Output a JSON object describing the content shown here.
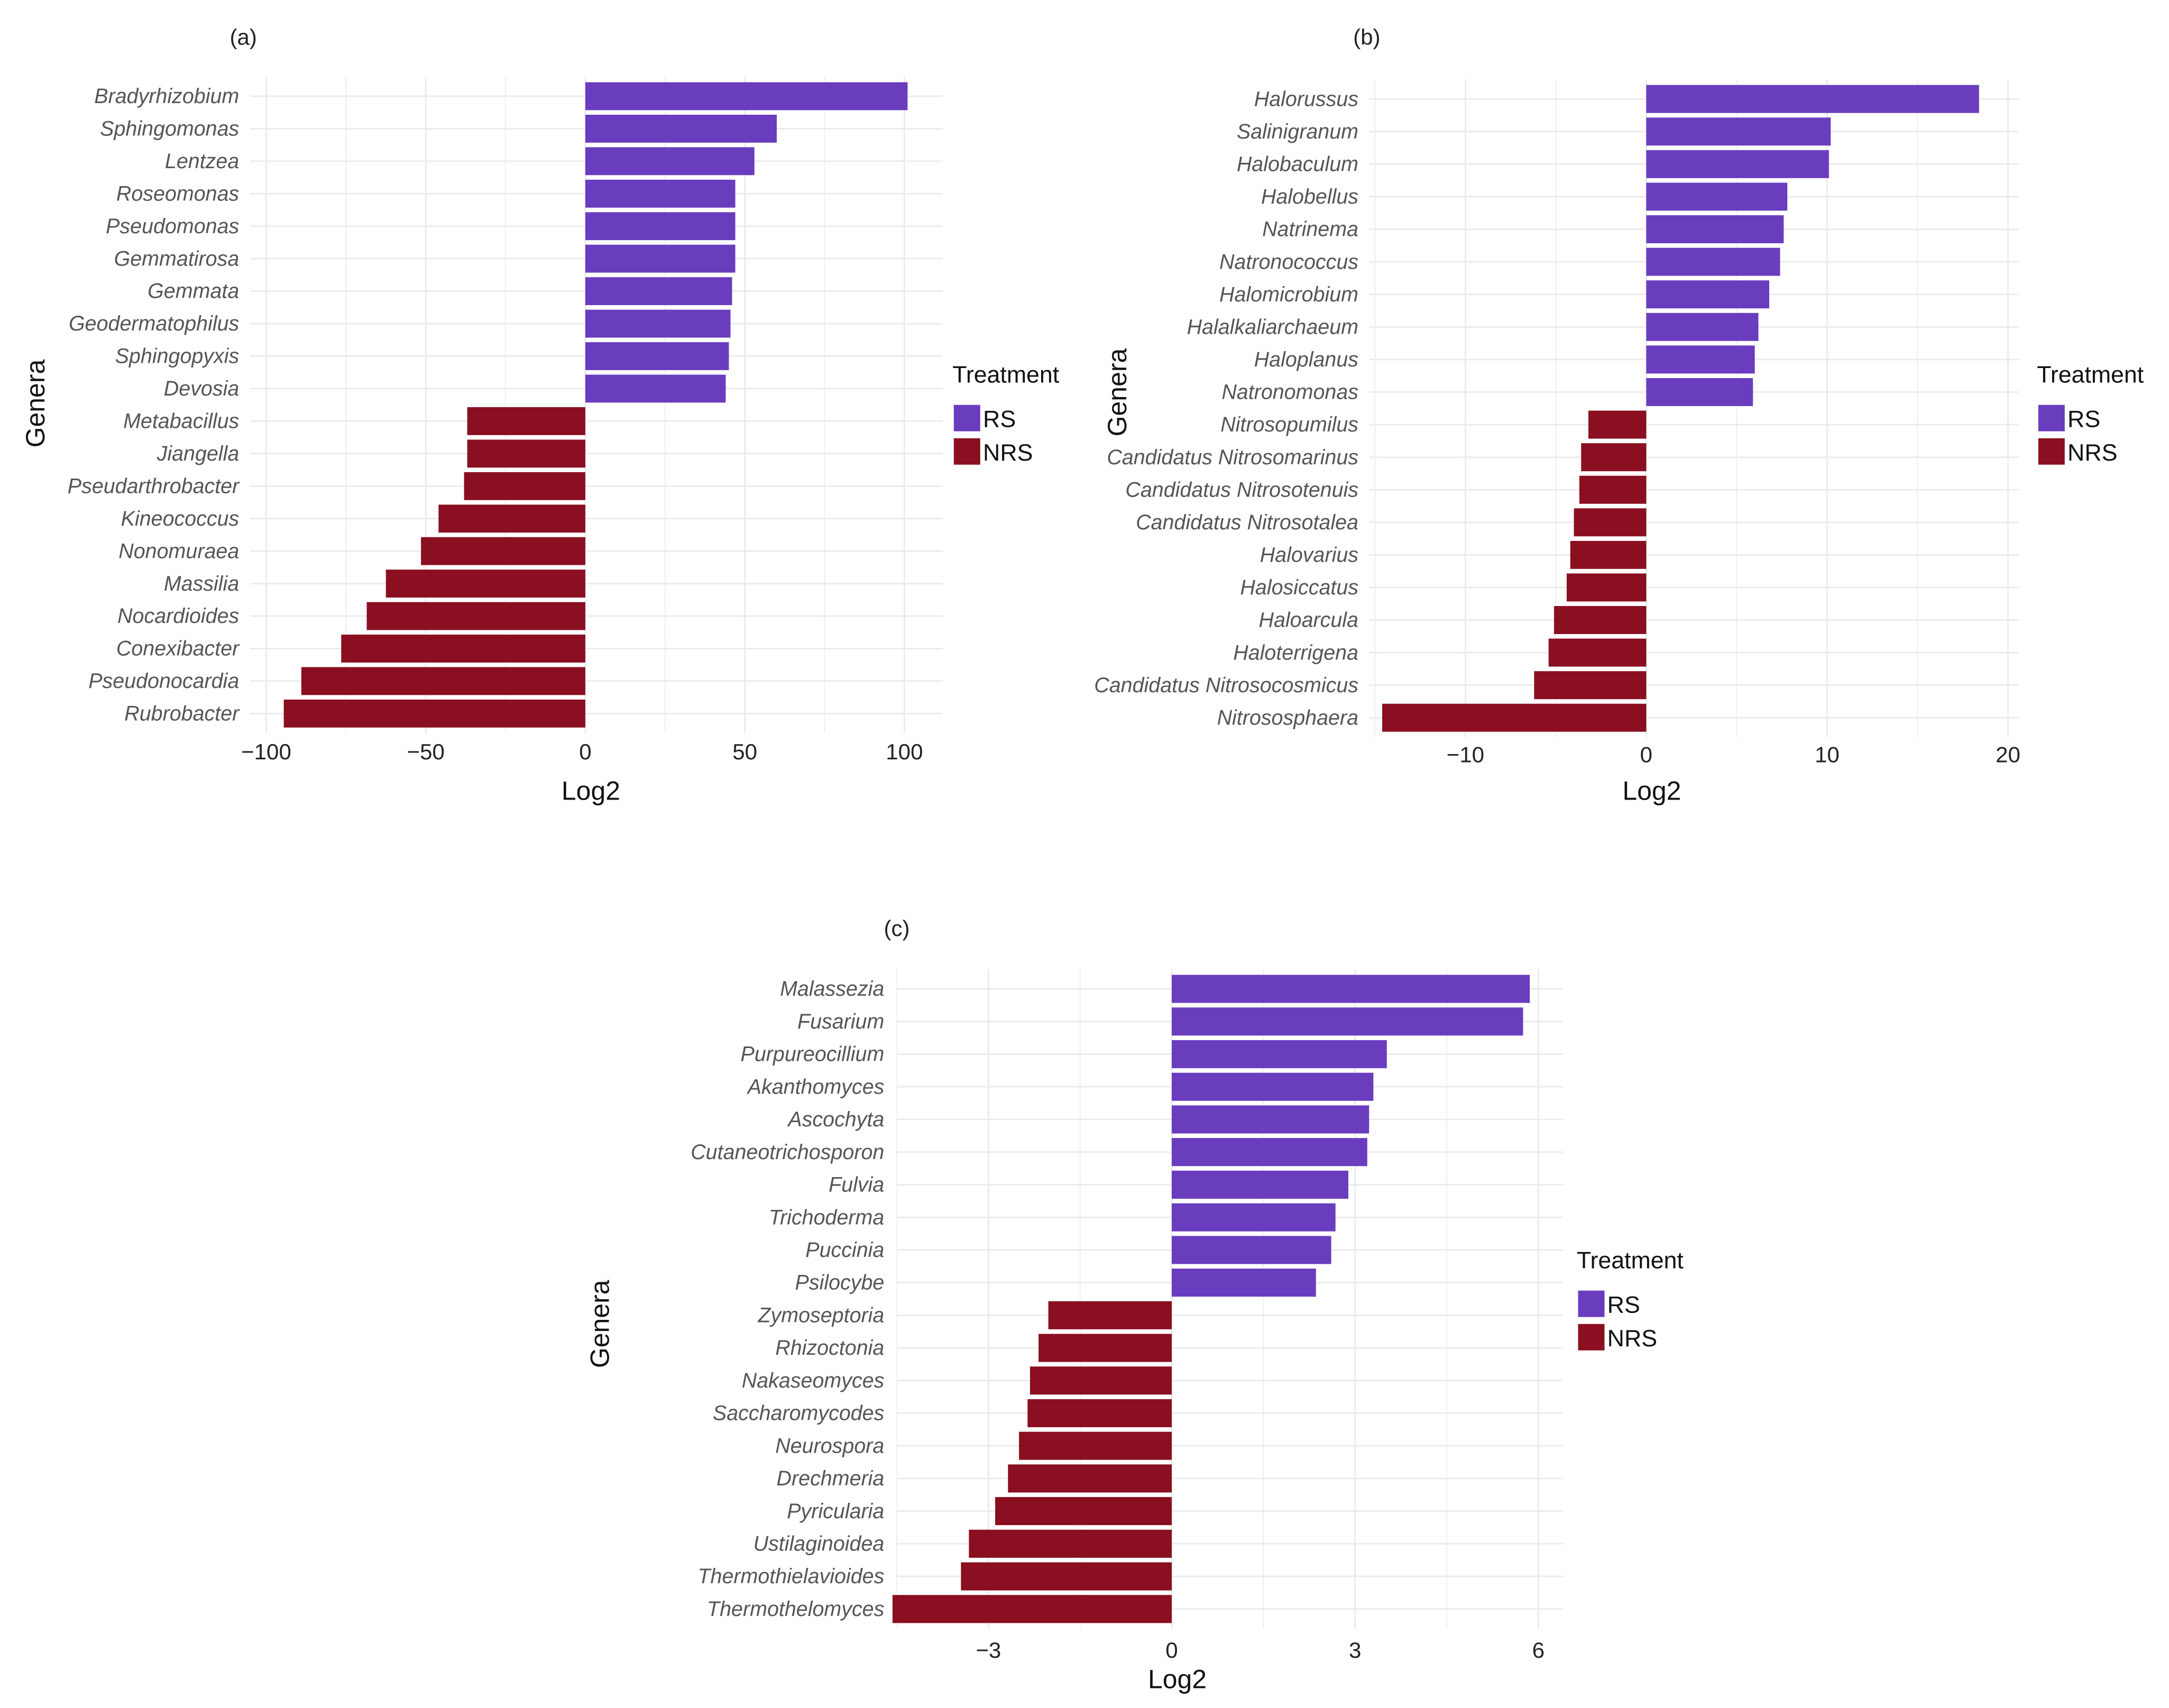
{
  "colors": {
    "RS": "#6a3dbf",
    "NRS": "#8a0f20",
    "grid": "#ebebeb"
  },
  "chart_data": [
    {
      "type": "bar",
      "panel": "(a)",
      "orientation": "horizontal",
      "xlabel": "Log2",
      "ylabel": "Genera",
      "legend_title": "Treatment",
      "legend": [
        "RS",
        "NRS"
      ],
      "legend_position": "right",
      "xticks": [
        -100,
        -50,
        0,
        50,
        100
      ],
      "xtick_labels": [
        "−100",
        "−50",
        "0",
        "50",
        "100"
      ],
      "xlim": [
        -105,
        112
      ],
      "categories": [
        "Bradyrhizobium",
        "Sphingomonas",
        "Lentzea",
        "Roseomonas",
        "Pseudomonas",
        "Gemmatirosa",
        "Gemmata",
        "Geodermatophilus",
        "Sphingopyxis",
        "Devosia",
        "Metabacillus",
        "Jiangella",
        "Pseudarthrobacter",
        "Kineococcus",
        "Nonomuraea",
        "Massilia",
        "Nocardioides",
        "Conexibacter",
        "Pseudonocardia",
        "Rubrobacter"
      ],
      "values": [
        101,
        60,
        53,
        47,
        47,
        47,
        46,
        45.5,
        45,
        44,
        -37,
        -37,
        -38,
        -46,
        -51.5,
        -62.5,
        -68.5,
        -76.5,
        -89,
        -94.5
      ],
      "treatment": [
        "RS",
        "RS",
        "RS",
        "RS",
        "RS",
        "RS",
        "RS",
        "RS",
        "RS",
        "RS",
        "NRS",
        "NRS",
        "NRS",
        "NRS",
        "NRS",
        "NRS",
        "NRS",
        "NRS",
        "NRS",
        "NRS"
      ]
    },
    {
      "type": "bar",
      "panel": "(b)",
      "orientation": "horizontal",
      "xlabel": "Log2",
      "ylabel": "Genera",
      "legend_title": "Treatment",
      "legend": [
        "RS",
        "NRS"
      ],
      "legend_position": "right",
      "xticks": [
        -10,
        0,
        10,
        20
      ],
      "xtick_labels": [
        "−10",
        "0",
        "10",
        "20"
      ],
      "xlim": [
        -15.3,
        20.6
      ],
      "categories": [
        "Halorussus",
        "Salinigranum",
        "Halobaculum",
        "Halobellus",
        "Natrinema",
        "Natronococcus",
        "Halomicrobium",
        "Halalkaliarchaeum",
        "Haloplanus",
        "Natronomonas",
        "Nitrosopumilus",
        "Candidatus Nitrosomarinus",
        "Candidatus Nitrosotenuis",
        "Candidatus Nitrosotalea",
        "Halovarius",
        "Halosiccatus",
        "Haloarcula",
        "Haloterrigena",
        "Candidatus Nitrosocosmicus",
        "Nitrososphaera"
      ],
      "values": [
        18.4,
        10.2,
        10.1,
        7.8,
        7.6,
        7.4,
        6.8,
        6.2,
        6.0,
        5.9,
        -3.2,
        -3.6,
        -3.7,
        -4.0,
        -4.2,
        -4.4,
        -5.1,
        -5.4,
        -6.2,
        -14.6
      ],
      "treatment": [
        "RS",
        "RS",
        "RS",
        "RS",
        "RS",
        "RS",
        "RS",
        "RS",
        "RS",
        "RS",
        "NRS",
        "NRS",
        "NRS",
        "NRS",
        "NRS",
        "NRS",
        "NRS",
        "NRS",
        "NRS",
        "NRS"
      ]
    },
    {
      "type": "bar",
      "panel": "(c)",
      "orientation": "horizontal",
      "xlabel": "Log2",
      "ylabel": "Genera",
      "legend_title": "Treatment",
      "legend": [
        "RS",
        "NRS"
      ],
      "legend_position": "right",
      "xticks": [
        -3,
        0,
        3,
        6
      ],
      "xtick_labels": [
        "−3",
        "0",
        "3",
        "6"
      ],
      "xlim": [
        -4.5,
        6.4
      ],
      "categories": [
        "Malassezia",
        "Fusarium",
        "Purpureocillium",
        "Akanthomyces",
        "Ascochyta",
        "Cutaneotrichosporon",
        "Fulvia",
        "Trichoderma",
        "Puccinia",
        "Psilocybe",
        "Zymoseptoria",
        "Rhizoctonia",
        "Nakaseomyces",
        "Saccharomycodes",
        "Neurospora",
        "Drechmeria",
        "Pyricularia",
        "Ustilaginoidea",
        "Thermothielavioides",
        "Thermothelomyces"
      ],
      "values": [
        5.86,
        5.75,
        3.52,
        3.3,
        3.23,
        3.2,
        2.89,
        2.68,
        2.61,
        2.36,
        -2.02,
        -2.18,
        -2.32,
        -2.36,
        -2.5,
        -2.68,
        -2.89,
        -3.32,
        -3.45,
        -4.57
      ],
      "treatment": [
        "RS",
        "RS",
        "RS",
        "RS",
        "RS",
        "RS",
        "RS",
        "RS",
        "RS",
        "RS",
        "NRS",
        "NRS",
        "NRS",
        "NRS",
        "NRS",
        "NRS",
        "NRS",
        "NRS",
        "NRS",
        "NRS"
      ]
    }
  ]
}
